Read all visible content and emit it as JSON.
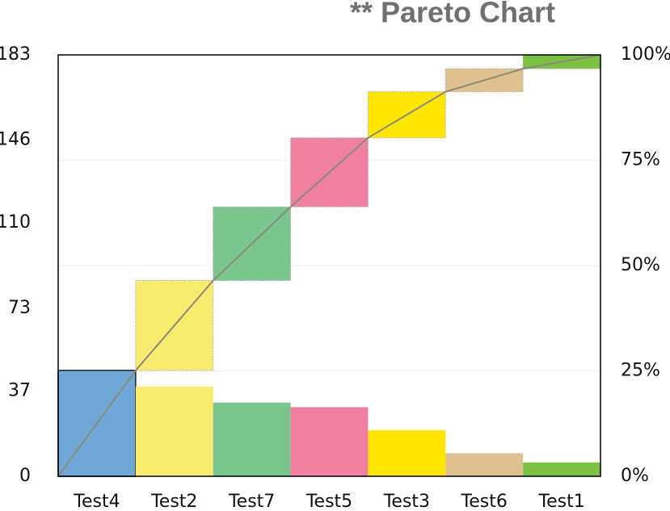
{
  "chart_data": {
    "type": "pareto",
    "title": "** Pareto Chart",
    "categories": [
      "Test4",
      "Test2",
      "Test7",
      "Test5",
      "Test3",
      "Test6",
      "Test1"
    ],
    "values": [
      46,
      39,
      32,
      30,
      20,
      10,
      6
    ],
    "colors": [
      "#6fa8d6",
      "#f7ec6e",
      "#7bc68f",
      "#f080a0",
      "#ffe600",
      "#dfc090",
      "#7cc142"
    ],
    "line_color": "#8a8a7a",
    "ylim": [
      0,
      183
    ],
    "yticks": [
      0,
      37,
      73,
      110,
      146,
      183
    ],
    "y2lim": [
      0,
      100
    ],
    "y2ticks": [
      {
        "value": 0,
        "label": "0%"
      },
      {
        "value": 25,
        "label": "25%"
      },
      {
        "value": 50,
        "label": "50%"
      },
      {
        "value": 75,
        "label": "75%"
      },
      {
        "value": 100,
        "label": "100%"
      }
    ],
    "grid": true
  }
}
